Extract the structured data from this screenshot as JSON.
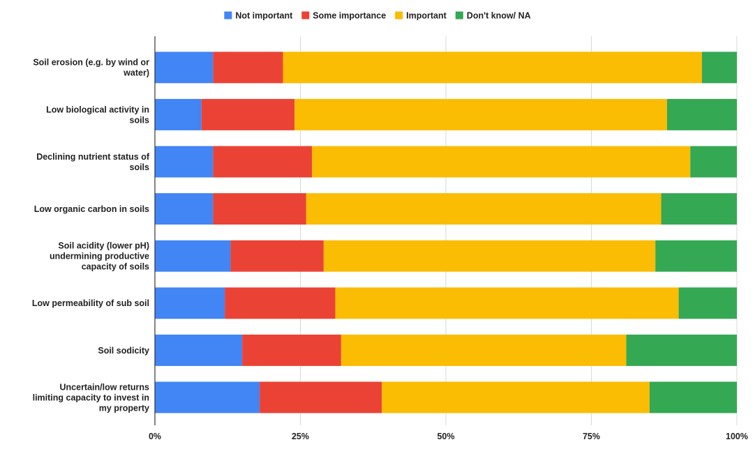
{
  "chart_data": {
    "type": "bar",
    "orientation": "horizontal",
    "stacking": "percent",
    "title": "",
    "xlabel": "",
    "ylabel": "",
    "xlim": [
      0,
      100
    ],
    "x_ticks": [
      "0%",
      "25%",
      "50%",
      "75%",
      "100%"
    ],
    "grid": true,
    "legend_position": "top",
    "categories": [
      [
        "Soil erosion (e.g. by wind or",
        "water)"
      ],
      [
        "Low biological activity in",
        "soils"
      ],
      [
        "Declining nutrient status of",
        "soils"
      ],
      [
        "Low organic carbon in soils"
      ],
      [
        "Soil acidity (lower pH)",
        "undermining productive",
        "capacity of soils"
      ],
      [
        "Low permeability of sub soil"
      ],
      [
        "Soil sodicity"
      ],
      [
        "Uncertain/low returns",
        "limiting capacity to invest in",
        "my property"
      ]
    ],
    "series": [
      {
        "name": "Not important",
        "color": "#4285F4",
        "values": [
          10,
          8,
          10,
          10,
          13,
          12,
          15,
          18
        ]
      },
      {
        "name": "Some importance",
        "color": "#EA4335",
        "values": [
          12,
          16,
          17,
          16,
          16,
          19,
          17,
          21
        ]
      },
      {
        "name": "Important",
        "color": "#FBBC04",
        "values": [
          72,
          64,
          65,
          61,
          57,
          59,
          49,
          46
        ]
      },
      {
        "name": "Don't know/ NA",
        "color": "#34A853",
        "values": [
          6,
          12,
          8,
          13,
          14,
          10,
          19,
          15
        ]
      }
    ]
  }
}
